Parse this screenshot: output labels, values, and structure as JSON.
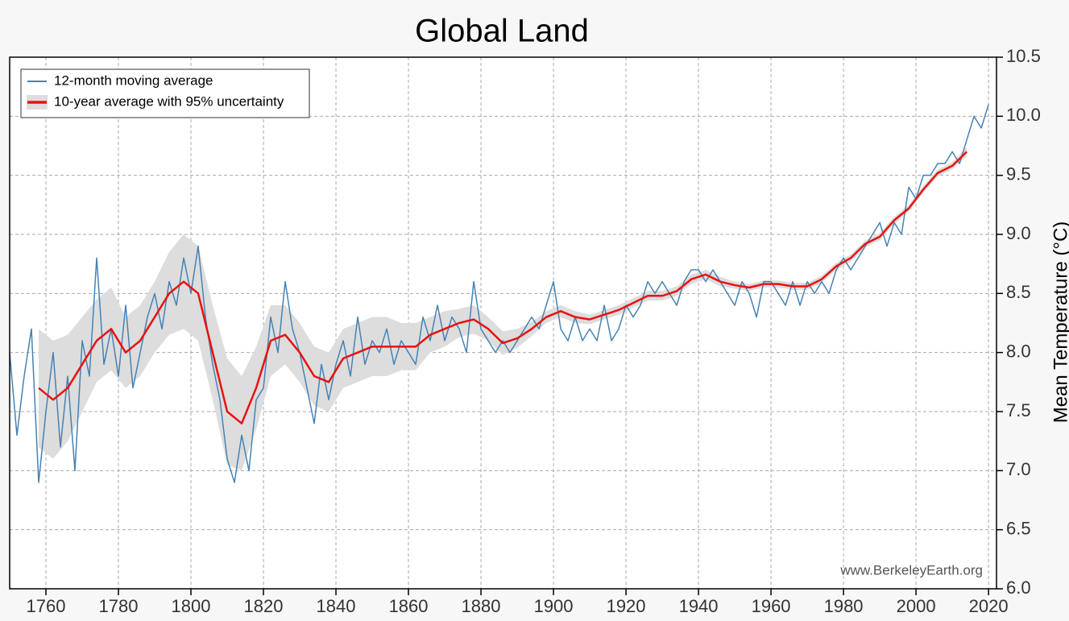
{
  "chart_data": {
    "type": "line",
    "title": "Global Land",
    "y_label": "Mean Temperature (°C)",
    "annotation": "www.BerkeleyEarth.org",
    "xlim": [
      1750,
      2022.2
    ],
    "ylim": [
      6.0,
      10.5
    ],
    "xticks": [
      1760,
      1780,
      1800,
      1820,
      1840,
      1860,
      1880,
      1900,
      1920,
      1940,
      1960,
      1980,
      2000,
      2020
    ],
    "yticks": [
      {
        "value": 6.0,
        "label": "6.0"
      },
      6.5,
      {
        "value": 7.0,
        "label": "7.0"
      },
      7.5,
      {
        "value": 8.0,
        "label": "8.0"
      },
      8.5,
      {
        "value": 9.0,
        "label": "9.0"
      },
      9.5,
      {
        "value": 10.0,
        "label": "10.0"
      },
      10.5
    ],
    "grid": true,
    "y_axis_side": "right",
    "legend": "upper left",
    "series": [
      {
        "name": "12-month moving average",
        "color": "#4682b4",
        "x": [
          1750,
          1752,
          1754,
          1756,
          1758,
          1760,
          1762,
          1764,
          1766,
          1768,
          1770,
          1772,
          1774,
          1776,
          1778,
          1780,
          1782,
          1784,
          1786,
          1788,
          1790,
          1792,
          1794,
          1796,
          1798,
          1800,
          1802,
          1804,
          1806,
          1808,
          1810,
          1812,
          1814,
          1816,
          1818,
          1820,
          1822,
          1824,
          1826,
          1828,
          1830,
          1832,
          1834,
          1836,
          1838,
          1840,
          1842,
          1844,
          1846,
          1848,
          1850,
          1852,
          1854,
          1856,
          1858,
          1860,
          1862,
          1864,
          1866,
          1868,
          1870,
          1872,
          1874,
          1876,
          1878,
          1880,
          1882,
          1884,
          1886,
          1888,
          1890,
          1892,
          1894,
          1896,
          1898,
          1900,
          1902,
          1904,
          1906,
          1908,
          1910,
          1912,
          1914,
          1916,
          1918,
          1920,
          1922,
          1924,
          1926,
          1928,
          1930,
          1932,
          1934,
          1936,
          1938,
          1940,
          1942,
          1944,
          1946,
          1948,
          1950,
          1952,
          1954,
          1956,
          1958,
          1960,
          1962,
          1964,
          1966,
          1968,
          1970,
          1972,
          1974,
          1976,
          1978,
          1980,
          1982,
          1984,
          1986,
          1988,
          1990,
          1992,
          1994,
          1996,
          1998,
          2000,
          2002,
          2004,
          2006,
          2008,
          2010,
          2012,
          2014,
          2016,
          2018,
          2020
        ],
        "values": [
          8.0,
          7.3,
          7.8,
          8.2,
          6.9,
          7.5,
          8.0,
          7.2,
          7.8,
          7.0,
          8.1,
          7.8,
          8.8,
          7.9,
          8.2,
          7.8,
          8.4,
          7.7,
          8.0,
          8.3,
          8.5,
          8.2,
          8.6,
          8.4,
          8.8,
          8.5,
          8.9,
          8.3,
          7.9,
          7.6,
          7.1,
          6.9,
          7.3,
          7.0,
          7.6,
          7.7,
          8.3,
          8.0,
          8.6,
          8.2,
          8.0,
          7.7,
          7.4,
          7.9,
          7.6,
          7.9,
          8.1,
          7.8,
          8.3,
          7.9,
          8.1,
          8.0,
          8.2,
          7.9,
          8.1,
          8.0,
          7.9,
          8.3,
          8.1,
          8.4,
          8.1,
          8.3,
          8.2,
          8.0,
          8.6,
          8.2,
          8.1,
          8.0,
          8.1,
          8.0,
          8.1,
          8.2,
          8.3,
          8.2,
          8.4,
          8.6,
          8.2,
          8.1,
          8.3,
          8.1,
          8.2,
          8.1,
          8.4,
          8.1,
          8.2,
          8.4,
          8.3,
          8.4,
          8.6,
          8.5,
          8.6,
          8.5,
          8.4,
          8.6,
          8.7,
          8.7,
          8.6,
          8.7,
          8.6,
          8.5,
          8.4,
          8.6,
          8.5,
          8.3,
          8.6,
          8.6,
          8.5,
          8.4,
          8.6,
          8.4,
          8.6,
          8.5,
          8.6,
          8.5,
          8.7,
          8.8,
          8.7,
          8.8,
          8.9,
          9.0,
          9.1,
          8.9,
          9.1,
          9.0,
          9.4,
          9.3,
          9.5,
          9.5,
          9.6,
          9.6,
          9.7,
          9.6,
          9.8,
          10.0,
          9.9,
          10.1
        ]
      },
      {
        "name": "10-year average with 95% uncertainty",
        "color": "#e8130f",
        "band_color": "#dddddd",
        "x": [
          1758,
          1762,
          1766,
          1770,
          1774,
          1778,
          1782,
          1786,
          1790,
          1794,
          1798,
          1802,
          1806,
          1810,
          1814,
          1818,
          1822,
          1826,
          1830,
          1834,
          1838,
          1842,
          1846,
          1850,
          1854,
          1858,
          1862,
          1866,
          1870,
          1874,
          1878,
          1882,
          1886,
          1890,
          1894,
          1898,
          1902,
          1906,
          1910,
          1914,
          1918,
          1922,
          1926,
          1930,
          1934,
          1938,
          1942,
          1946,
          1950,
          1954,
          1958,
          1962,
          1966,
          1970,
          1974,
          1978,
          1982,
          1986,
          1990,
          1994,
          1998,
          2002,
          2006,
          2010,
          2014
        ],
        "values": [
          7.7,
          7.6,
          7.7,
          7.9,
          8.1,
          8.2,
          8.0,
          8.1,
          8.3,
          8.5,
          8.6,
          8.5,
          8.0,
          7.5,
          7.4,
          7.7,
          8.1,
          8.15,
          8.0,
          7.8,
          7.75,
          7.95,
          8.0,
          8.05,
          8.05,
          8.05,
          8.05,
          8.15,
          8.2,
          8.25,
          8.28,
          8.2,
          8.08,
          8.12,
          8.2,
          8.3,
          8.35,
          8.3,
          8.28,
          8.32,
          8.36,
          8.42,
          8.48,
          8.48,
          8.52,
          8.62,
          8.66,
          8.6,
          8.57,
          8.55,
          8.58,
          8.58,
          8.56,
          8.56,
          8.62,
          8.73,
          8.8,
          8.92,
          8.98,
          9.12,
          9.22,
          9.38,
          9.52,
          9.58,
          9.7
        ],
        "lower": [
          7.2,
          7.1,
          7.25,
          7.5,
          7.75,
          7.85,
          7.7,
          7.8,
          8.0,
          8.15,
          8.2,
          8.1,
          7.6,
          7.05,
          7.0,
          7.35,
          7.8,
          7.9,
          7.75,
          7.55,
          7.5,
          7.7,
          7.75,
          7.8,
          7.8,
          7.85,
          7.85,
          8.0,
          8.05,
          8.13,
          8.16,
          8.1,
          7.98,
          8.04,
          8.14,
          8.25,
          8.3,
          8.25,
          8.24,
          8.28,
          8.32,
          8.38,
          8.44,
          8.44,
          8.48,
          8.58,
          8.62,
          8.56,
          8.54,
          8.52,
          8.55,
          8.55,
          8.53,
          8.53,
          8.59,
          8.7,
          8.77,
          8.89,
          8.95,
          9.09,
          9.19,
          9.35,
          9.49,
          9.55,
          9.66
        ],
        "upper": [
          8.2,
          8.1,
          8.15,
          8.3,
          8.45,
          8.55,
          8.3,
          8.4,
          8.6,
          8.85,
          9.0,
          8.9,
          8.4,
          7.95,
          7.8,
          8.05,
          8.4,
          8.4,
          8.25,
          8.05,
          8.0,
          8.2,
          8.25,
          8.3,
          8.3,
          8.25,
          8.25,
          8.3,
          8.35,
          8.37,
          8.4,
          8.3,
          8.18,
          8.2,
          8.26,
          8.35,
          8.4,
          8.35,
          8.32,
          8.36,
          8.4,
          8.46,
          8.52,
          8.52,
          8.56,
          8.66,
          8.7,
          8.64,
          8.6,
          8.58,
          8.61,
          8.61,
          8.59,
          8.59,
          8.65,
          8.76,
          8.83,
          8.95,
          9.01,
          9.15,
          9.25,
          9.41,
          9.55,
          9.61,
          9.74
        ]
      }
    ]
  }
}
